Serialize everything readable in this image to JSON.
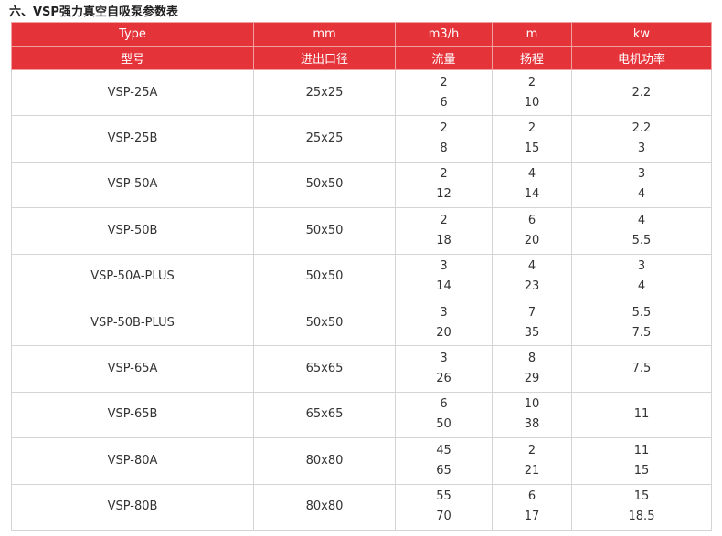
{
  "title": "六、VSP强力真空自吸泵参数表",
  "table": {
    "header_rows": [
      [
        "Type",
        "mm",
        "m3/h",
        "m",
        "kw"
      ],
      [
        "型号",
        "进出口径",
        "流量",
        "扬程",
        "电机功率"
      ]
    ],
    "rows": [
      [
        [
          "VSP-25A"
        ],
        [
          "25x25"
        ],
        [
          "2",
          "6"
        ],
        [
          "2",
          "10"
        ],
        [
          "2.2"
        ]
      ],
      [
        [
          "VSP-25B"
        ],
        [
          "25x25"
        ],
        [
          "2",
          "8"
        ],
        [
          "2",
          "15"
        ],
        [
          "2.2",
          "3"
        ]
      ],
      [
        [
          "VSP-50A"
        ],
        [
          "50x50"
        ],
        [
          "2",
          "12"
        ],
        [
          "4",
          "14"
        ],
        [
          "3",
          "4"
        ]
      ],
      [
        [
          "VSP-50B"
        ],
        [
          "50x50"
        ],
        [
          "2",
          "18"
        ],
        [
          "6",
          "20"
        ],
        [
          "4",
          "5.5"
        ]
      ],
      [
        [
          "VSP-50A-PLUS"
        ],
        [
          "50x50"
        ],
        [
          "3",
          "14"
        ],
        [
          "4",
          "23"
        ],
        [
          "3",
          "4"
        ]
      ],
      [
        [
          "VSP-50B-PLUS"
        ],
        [
          "50x50"
        ],
        [
          "3",
          "20"
        ],
        [
          "7",
          "35"
        ],
        [
          "5.5",
          "7.5"
        ]
      ],
      [
        [
          "VSP-65A"
        ],
        [
          "65x65"
        ],
        [
          "3",
          "26"
        ],
        [
          "8",
          "29"
        ],
        [
          "7.5"
        ]
      ],
      [
        [
          "VSP-65B"
        ],
        [
          "65x65"
        ],
        [
          "6",
          "50"
        ],
        [
          "10",
          "38"
        ],
        [
          "11"
        ]
      ],
      [
        [
          "VSP-80A"
        ],
        [
          "80x80"
        ],
        [
          "45",
          "65"
        ],
        [
          "2",
          "21"
        ],
        [
          "11",
          "15"
        ]
      ],
      [
        [
          "VSP-80B"
        ],
        [
          "80x80"
        ],
        [
          "55",
          "70"
        ],
        [
          "6",
          "17"
        ],
        [
          "15",
          "18.5"
        ]
      ]
    ]
  }
}
